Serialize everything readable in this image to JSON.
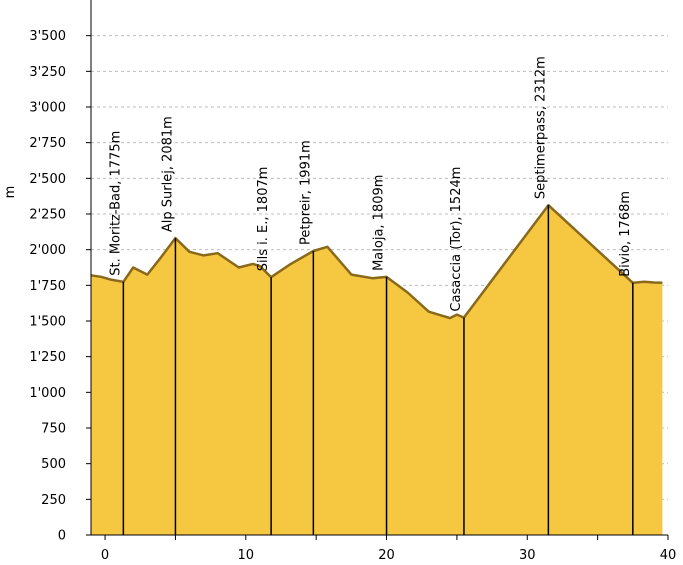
{
  "chart_data": {
    "type": "area",
    "title": "",
    "xlabel": "",
    "ylabel": "m",
    "xlim": [
      -1,
      40
    ],
    "ylim": [
      0,
      3750
    ],
    "x_ticks": [
      0,
      10,
      20,
      30,
      40
    ],
    "x_minor_ticks": [
      5,
      15,
      25,
      35
    ],
    "y_ticks": [
      0,
      250,
      500,
      750,
      1000,
      1250,
      1500,
      1750,
      2000,
      2250,
      2500,
      2750,
      3000,
      3250,
      3500
    ],
    "y_tick_labels": [
      "0",
      "250",
      "500",
      "750",
      "1'000",
      "1'250",
      "1'500",
      "1'750",
      "2'000",
      "2'250",
      "2'500",
      "2'750",
      "3'000",
      "3'250",
      "3'500"
    ],
    "grid": true,
    "colors": {
      "fill": "#f6c842",
      "line": "#8a6a1a",
      "marker": "#000000"
    },
    "x": [
      -1,
      -0.3,
      0.4,
      1.3,
      2.0,
      3.0,
      4.0,
      5.0,
      6.0,
      7.0,
      8.0,
      9.5,
      10.5,
      11.0,
      11.8,
      13.2,
      14.8,
      15.8,
      17.5,
      19.0,
      20.0,
      21.5,
      23.0,
      24.5,
      25.0,
      25.5,
      31.5,
      37.5,
      38.3,
      39.0,
      39.6
    ],
    "y": [
      1820,
      1810,
      1790,
      1775,
      1875,
      1825,
      1950,
      2081,
      1985,
      1960,
      1975,
      1875,
      1900,
      1885,
      1807,
      1900,
      1991,
      2020,
      1825,
      1800,
      1809,
      1700,
      1565,
      1520,
      1545,
      1524,
      2312,
      1768,
      1775,
      1770,
      1768
    ],
    "locations": [
      {
        "label": "St. Moritz-Bad, 1775m",
        "x": 1.3,
        "y": 1775
      },
      {
        "label": "Alp Surlej, 2081m",
        "x": 5.0,
        "y": 2081
      },
      {
        "label": "Sils i. E., 1807m",
        "x": 11.8,
        "y": 1807
      },
      {
        "label": "Petpreir, 1991m",
        "x": 14.8,
        "y": 1991
      },
      {
        "label": "Maloja, 1809m",
        "x": 20.0,
        "y": 1809
      },
      {
        "label": "Casaccia (Tor), 1524m",
        "x": 25.5,
        "y": 1524
      },
      {
        "label": "Septimerpass, 2312m",
        "x": 31.5,
        "y": 2312
      },
      {
        "label": "Bivio, 1768m",
        "x": 37.5,
        "y": 1768
      }
    ]
  }
}
